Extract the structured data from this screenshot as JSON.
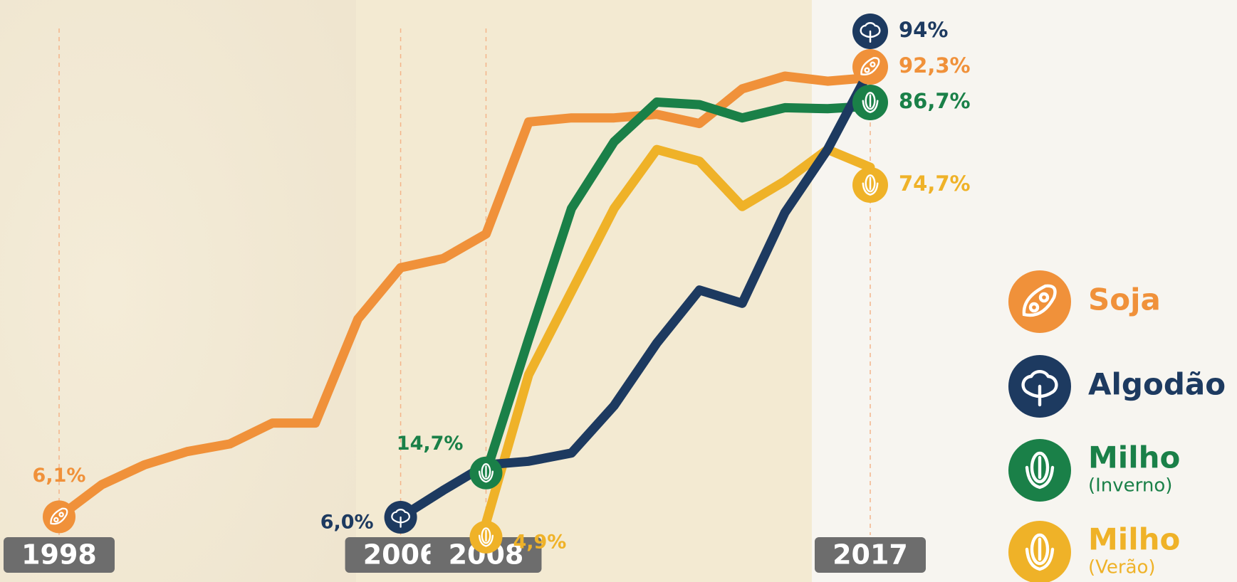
{
  "chart_data": {
    "type": "line",
    "x": [
      1998,
      1999,
      2000,
      2001,
      2002,
      2003,
      2004,
      2005,
      2006,
      2007,
      2008,
      2009,
      2010,
      2011,
      2012,
      2013,
      2014,
      2015,
      2016,
      2017
    ],
    "xlim": [
      1998,
      2017
    ],
    "xticks": [
      1998,
      2006,
      2008,
      2017
    ],
    "ylim": [
      0,
      100
    ],
    "series": [
      {
        "name": "Soja",
        "color": "#f0913a",
        "values": [
          6.1,
          12.4,
          16.3,
          18.9,
          20.4,
          24.5,
          24.5,
          44.9,
          55,
          56.8,
          61.6,
          83.6,
          84.4,
          84.4,
          85.1,
          83.3,
          90.1,
          92.6,
          91.6,
          92.3
        ],
        "value_labels": [
          "6,1%",
          null,
          null,
          null,
          null,
          null,
          null,
          null,
          null,
          null,
          null,
          null,
          null,
          null,
          null,
          null,
          null,
          null,
          null,
          "92,3%"
        ]
      },
      {
        "name": "Algodão",
        "color": "#1d3a60",
        "values": [
          null,
          null,
          null,
          null,
          null,
          null,
          null,
          null,
          6.0,
          11.3,
          16.3,
          17,
          18.6,
          27.9,
          40.2,
          50.6,
          48,
          65.8,
          78.2,
          94
        ],
        "value_labels": [
          null,
          null,
          null,
          null,
          null,
          null,
          null,
          null,
          "6,0%",
          null,
          null,
          null,
          null,
          null,
          null,
          null,
          null,
          null,
          null,
          "94%"
        ]
      },
      {
        "name": "Milho",
        "legend_note": "(Inverno)",
        "color": "#1a8048",
        "values": [
          null,
          null,
          null,
          null,
          null,
          null,
          null,
          null,
          null,
          null,
          14.7,
          41,
          66.6,
          79.7,
          87.5,
          87,
          84.4,
          86.4,
          86.2,
          86.7
        ],
        "value_labels": [
          null,
          null,
          null,
          null,
          null,
          null,
          null,
          null,
          null,
          null,
          "14,7%",
          null,
          null,
          null,
          null,
          null,
          null,
          null,
          null,
          "86,7%"
        ]
      },
      {
        "name": "Milho",
        "legend_note": "(Verão)",
        "color": "#efb228",
        "values": [
          null,
          null,
          null,
          null,
          null,
          null,
          null,
          null,
          null,
          null,
          4.9,
          34,
          50.3,
          66.6,
          78.2,
          75.9,
          67,
          72,
          78.2,
          74.7
        ],
        "value_labels": [
          null,
          null,
          null,
          null,
          null,
          null,
          null,
          null,
          null,
          null,
          "4,9%",
          null,
          null,
          null,
          null,
          null,
          null,
          null,
          null,
          "74,7%"
        ]
      }
    ]
  }
}
